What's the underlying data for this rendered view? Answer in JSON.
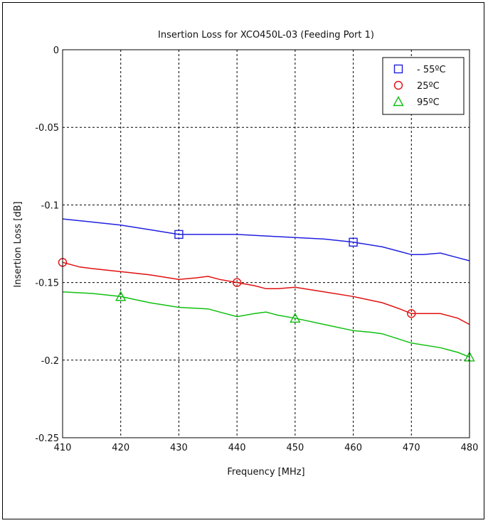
{
  "chart_data": {
    "type": "line",
    "title": "Insertion Loss for XCO450L-03 (Feeding Port 1)",
    "xlabel": "Frequency [MHz]",
    "ylabel": "Insertion Loss [dB]",
    "xlim": [
      410,
      480
    ],
    "ylim": [
      -0.25,
      0
    ],
    "x_ticks": [
      "410",
      "420",
      "430",
      "440",
      "450",
      "460",
      "470",
      "480"
    ],
    "y_ticks": [
      "0",
      "-0.05",
      "-0.1",
      "-0.15",
      "-0.2",
      "-0.25"
    ],
    "grid": true,
    "legend_position": "top-right",
    "series": [
      {
        "name": "- 55ºC",
        "color": "#2020e0",
        "marker": "square",
        "marker_x": [
          430,
          460
        ],
        "x": [
          410,
          415,
          420,
          425,
          430,
          435,
          440,
          445,
          450,
          455,
          460,
          465,
          468,
          470,
          472,
          475,
          478,
          480
        ],
        "y": [
          -0.109,
          -0.111,
          -0.113,
          -0.116,
          -0.119,
          -0.119,
          -0.119,
          -0.12,
          -0.121,
          -0.122,
          -0.124,
          -0.127,
          -0.13,
          -0.132,
          -0.132,
          -0.131,
          -0.134,
          -0.136
        ]
      },
      {
        "name": "25ºC",
        "color": "#e01010",
        "marker": "circle",
        "marker_x": [
          410,
          440,
          470
        ],
        "x": [
          410,
          413,
          415,
          420,
          425,
          430,
          433,
          435,
          437,
          440,
          443,
          445,
          447,
          450,
          455,
          460,
          465,
          468,
          470,
          473,
          475,
          478,
          480
        ],
        "y": [
          -0.137,
          -0.14,
          -0.141,
          -0.143,
          -0.145,
          -0.148,
          -0.147,
          -0.146,
          -0.148,
          -0.15,
          -0.152,
          -0.154,
          -0.154,
          -0.153,
          -0.156,
          -0.159,
          -0.163,
          -0.167,
          -0.17,
          -0.17,
          -0.17,
          -0.173,
          -0.177
        ]
      },
      {
        "name": "95ºC",
        "color": "#10c010",
        "marker": "triangle",
        "marker_x": [
          420,
          450,
          480
        ],
        "x": [
          410,
          415,
          420,
          425,
          430,
          435,
          440,
          443,
          445,
          447,
          450,
          455,
          460,
          463,
          465,
          470,
          475,
          478,
          480
        ],
        "y": [
          -0.156,
          -0.157,
          -0.159,
          -0.163,
          -0.166,
          -0.167,
          -0.172,
          -0.17,
          -0.169,
          -0.171,
          -0.173,
          -0.177,
          -0.181,
          -0.182,
          -0.183,
          -0.189,
          -0.192,
          -0.195,
          -0.198
        ]
      }
    ]
  }
}
